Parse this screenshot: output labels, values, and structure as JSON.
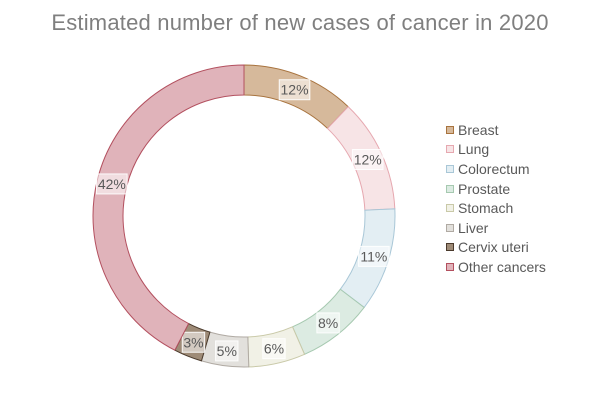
{
  "chart_data": {
    "type": "pie",
    "title": "Estimated number of new cases of cancer in 2020",
    "donut": true,
    "legend_position": "right",
    "categories": [
      "Breast",
      "Lung",
      "Colorectum",
      "Prostate",
      "Stomach",
      "Liver",
      "Cervix uteri",
      "Other cancers"
    ],
    "values": [
      12,
      12,
      11,
      8,
      6,
      5,
      3,
      42
    ],
    "data_labels": [
      "12%",
      "12%",
      "11%",
      "8%",
      "6%",
      "5%",
      "3%",
      "42%"
    ],
    "colors": [
      "#d6b99b",
      "#f7e4e6",
      "#e3eef3",
      "#dcebe2",
      "#f1f1e6",
      "#e2e0dc",
      "#9e8b77",
      "#e0b3ba"
    ],
    "stroke_colors": [
      "#a8733e",
      "#e6a8b0",
      "#a9c7d7",
      "#a6c9b0",
      "#c9c9a8",
      "#b0aaa3",
      "#4a3a2c",
      "#b3505f"
    ]
  }
}
